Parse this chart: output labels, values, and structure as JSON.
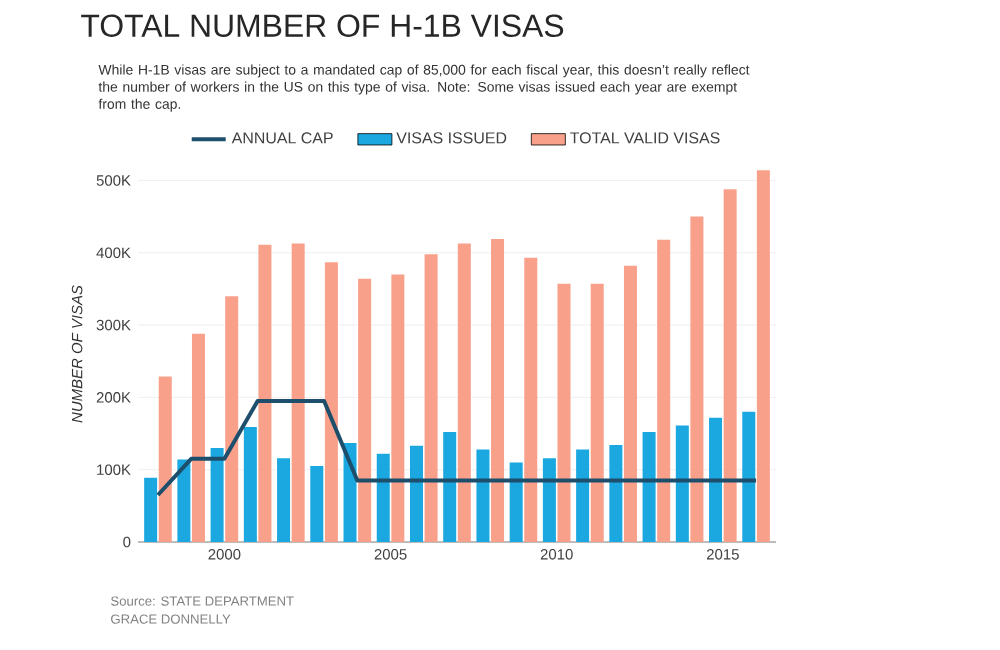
{
  "chart_data": {
    "type": "bar",
    "title": "TOTAL NUMBER OF H-1B VISAS",
    "subtitle": "While H-1B visas are subject to a mandated cap of 85,000 for each fiscal year, this doesn’t really reflect the number of workers in the US on this type of visa. Note: Some visas issued each year are exempt from the cap.",
    "ylabel": "NUMBER OF VISAS",
    "annotations": [
      "Source: STATE DEPARTMENT",
      "GRACE DONNELLY"
    ],
    "x": [
      1998,
      1999,
      2000,
      2001,
      2002,
      2003,
      2004,
      2005,
      2006,
      2007,
      2008,
      2009,
      2010,
      2011,
      2012,
      2013,
      2014,
      2015,
      2016
    ],
    "series": [
      {
        "name": "ANNUAL CAP",
        "type": "line",
        "color": "#1d4e6b",
        "values": [
          65000,
          115000,
          115000,
          195000,
          195000,
          195000,
          85000,
          85000,
          85000,
          85000,
          85000,
          85000,
          85000,
          85000,
          85000,
          85000,
          85000,
          85000,
          85000
        ]
      },
      {
        "name": "VISAS ISSUED",
        "color": "#1ba7e0",
        "values": [
          89000,
          114000,
          130000,
          159000,
          116000,
          105000,
          137000,
          122000,
          133000,
          152000,
          128000,
          110000,
          116000,
          128000,
          134000,
          152000,
          161000,
          172000,
          180000
        ]
      },
      {
        "name": "TOTAL VALID VISAS",
        "color": "#f9a08a",
        "values": [
          229000,
          288000,
          340000,
          411000,
          413000,
          387000,
          364000,
          370000,
          398000,
          413000,
          419000,
          393000,
          357000,
          357000,
          382000,
          418000,
          450000,
          488000,
          514000
        ]
      }
    ],
    "xlim": [
      1997.4,
      2016.6
    ],
    "xticks": [
      2000,
      2005,
      2010,
      2015
    ],
    "ylim": [
      0,
      520000
    ],
    "yticks": [
      0,
      {
        "value": 100000,
        "label": "100K"
      },
      {
        "value": 200000,
        "label": "200K"
      },
      {
        "value": 300000,
        "label": "300K"
      },
      {
        "value": 400000,
        "label": "400K"
      },
      {
        "value": 500000,
        "label": "500K"
      }
    ],
    "grid": "y",
    "legend": "top",
    "marker": "none",
    "line_style": "solid"
  }
}
